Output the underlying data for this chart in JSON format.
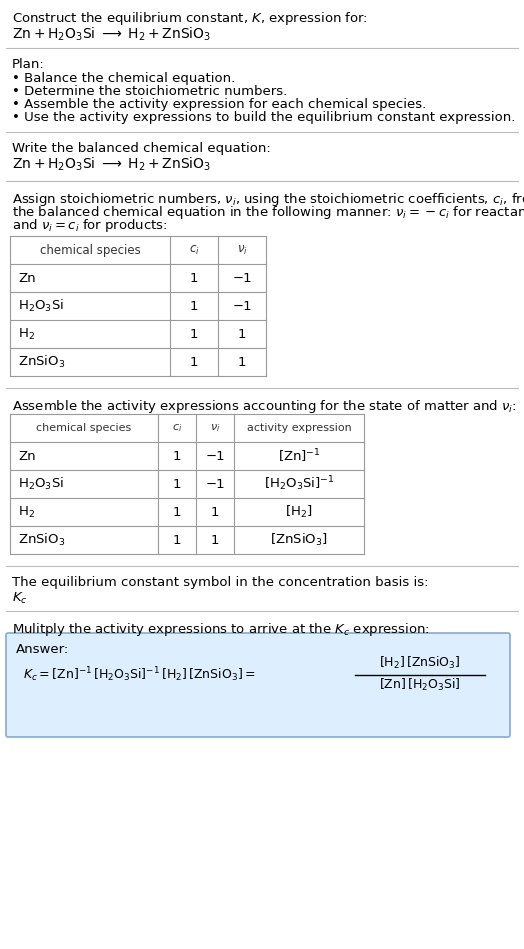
{
  "title_line1": "Construct the equilibrium constant, $K$, expression for:",
  "title_line2": "$\\mathrm{Zn + H_2O_3Si \\;\\longrightarrow\\; H_2 + ZnSiO_3}$",
  "plan_header": "Plan:",
  "plan_items": [
    "• Balance the chemical equation.",
    "• Determine the stoichiometric numbers.",
    "• Assemble the activity expression for each chemical species.",
    "• Use the activity expressions to build the equilibrium constant expression."
  ],
  "balanced_eq_header": "Write the balanced chemical equation:",
  "balanced_eq": "$\\mathrm{Zn + H_2O_3Si \\;\\longrightarrow\\; H_2 + ZnSiO_3}$",
  "stoich_header_parts": [
    "Assign stoichiometric numbers, $\\nu_i$, using the stoichiometric coefficients, $c_i$, from",
    "the balanced chemical equation in the following manner: $\\nu_i = -c_i$ for reactants",
    "and $\\nu_i = c_i$ for products:"
  ],
  "table1_headers": [
    "chemical species",
    "$c_i$",
    "$\\nu_i$"
  ],
  "table1_rows": [
    [
      "Zn",
      "1",
      "−1"
    ],
    [
      "$\\mathrm{H_2O_3Si}$",
      "1",
      "−1"
    ],
    [
      "$\\mathrm{H_2}$",
      "1",
      "1"
    ],
    [
      "$\\mathrm{ZnSiO_3}$",
      "1",
      "1"
    ]
  ],
  "activity_header": "Assemble the activity expressions accounting for the state of matter and $\\nu_i$:",
  "table2_headers": [
    "chemical species",
    "$c_i$",
    "$\\nu_i$",
    "activity expression"
  ],
  "table2_rows": [
    [
      "Zn",
      "1",
      "−1",
      "$[\\mathrm{Zn}]^{-1}$"
    ],
    [
      "$\\mathrm{H_2O_3Si}$",
      "1",
      "−1",
      "$[\\mathrm{H_2O_3Si}]^{-1}$"
    ],
    [
      "$\\mathrm{H_2}$",
      "1",
      "1",
      "$[\\mathrm{H_2}]$"
    ],
    [
      "$\\mathrm{ZnSiO_3}$",
      "1",
      "1",
      "$[\\mathrm{ZnSiO_3}]$"
    ]
  ],
  "kc_symbol_header": "The equilibrium constant symbol in the concentration basis is:",
  "kc_symbol": "$K_c$",
  "multiply_header": "Mulitply the activity expressions to arrive at the $K_c$ expression:",
  "answer_label": "Answer:",
  "bg_color": "#ffffff",
  "text_color": "#000000",
  "answer_box_bg": "#ddeeff",
  "answer_box_border": "#88aacc",
  "font_size": 9.5,
  "fig_width": 5.24,
  "fig_height": 9.49,
  "dpi": 100
}
